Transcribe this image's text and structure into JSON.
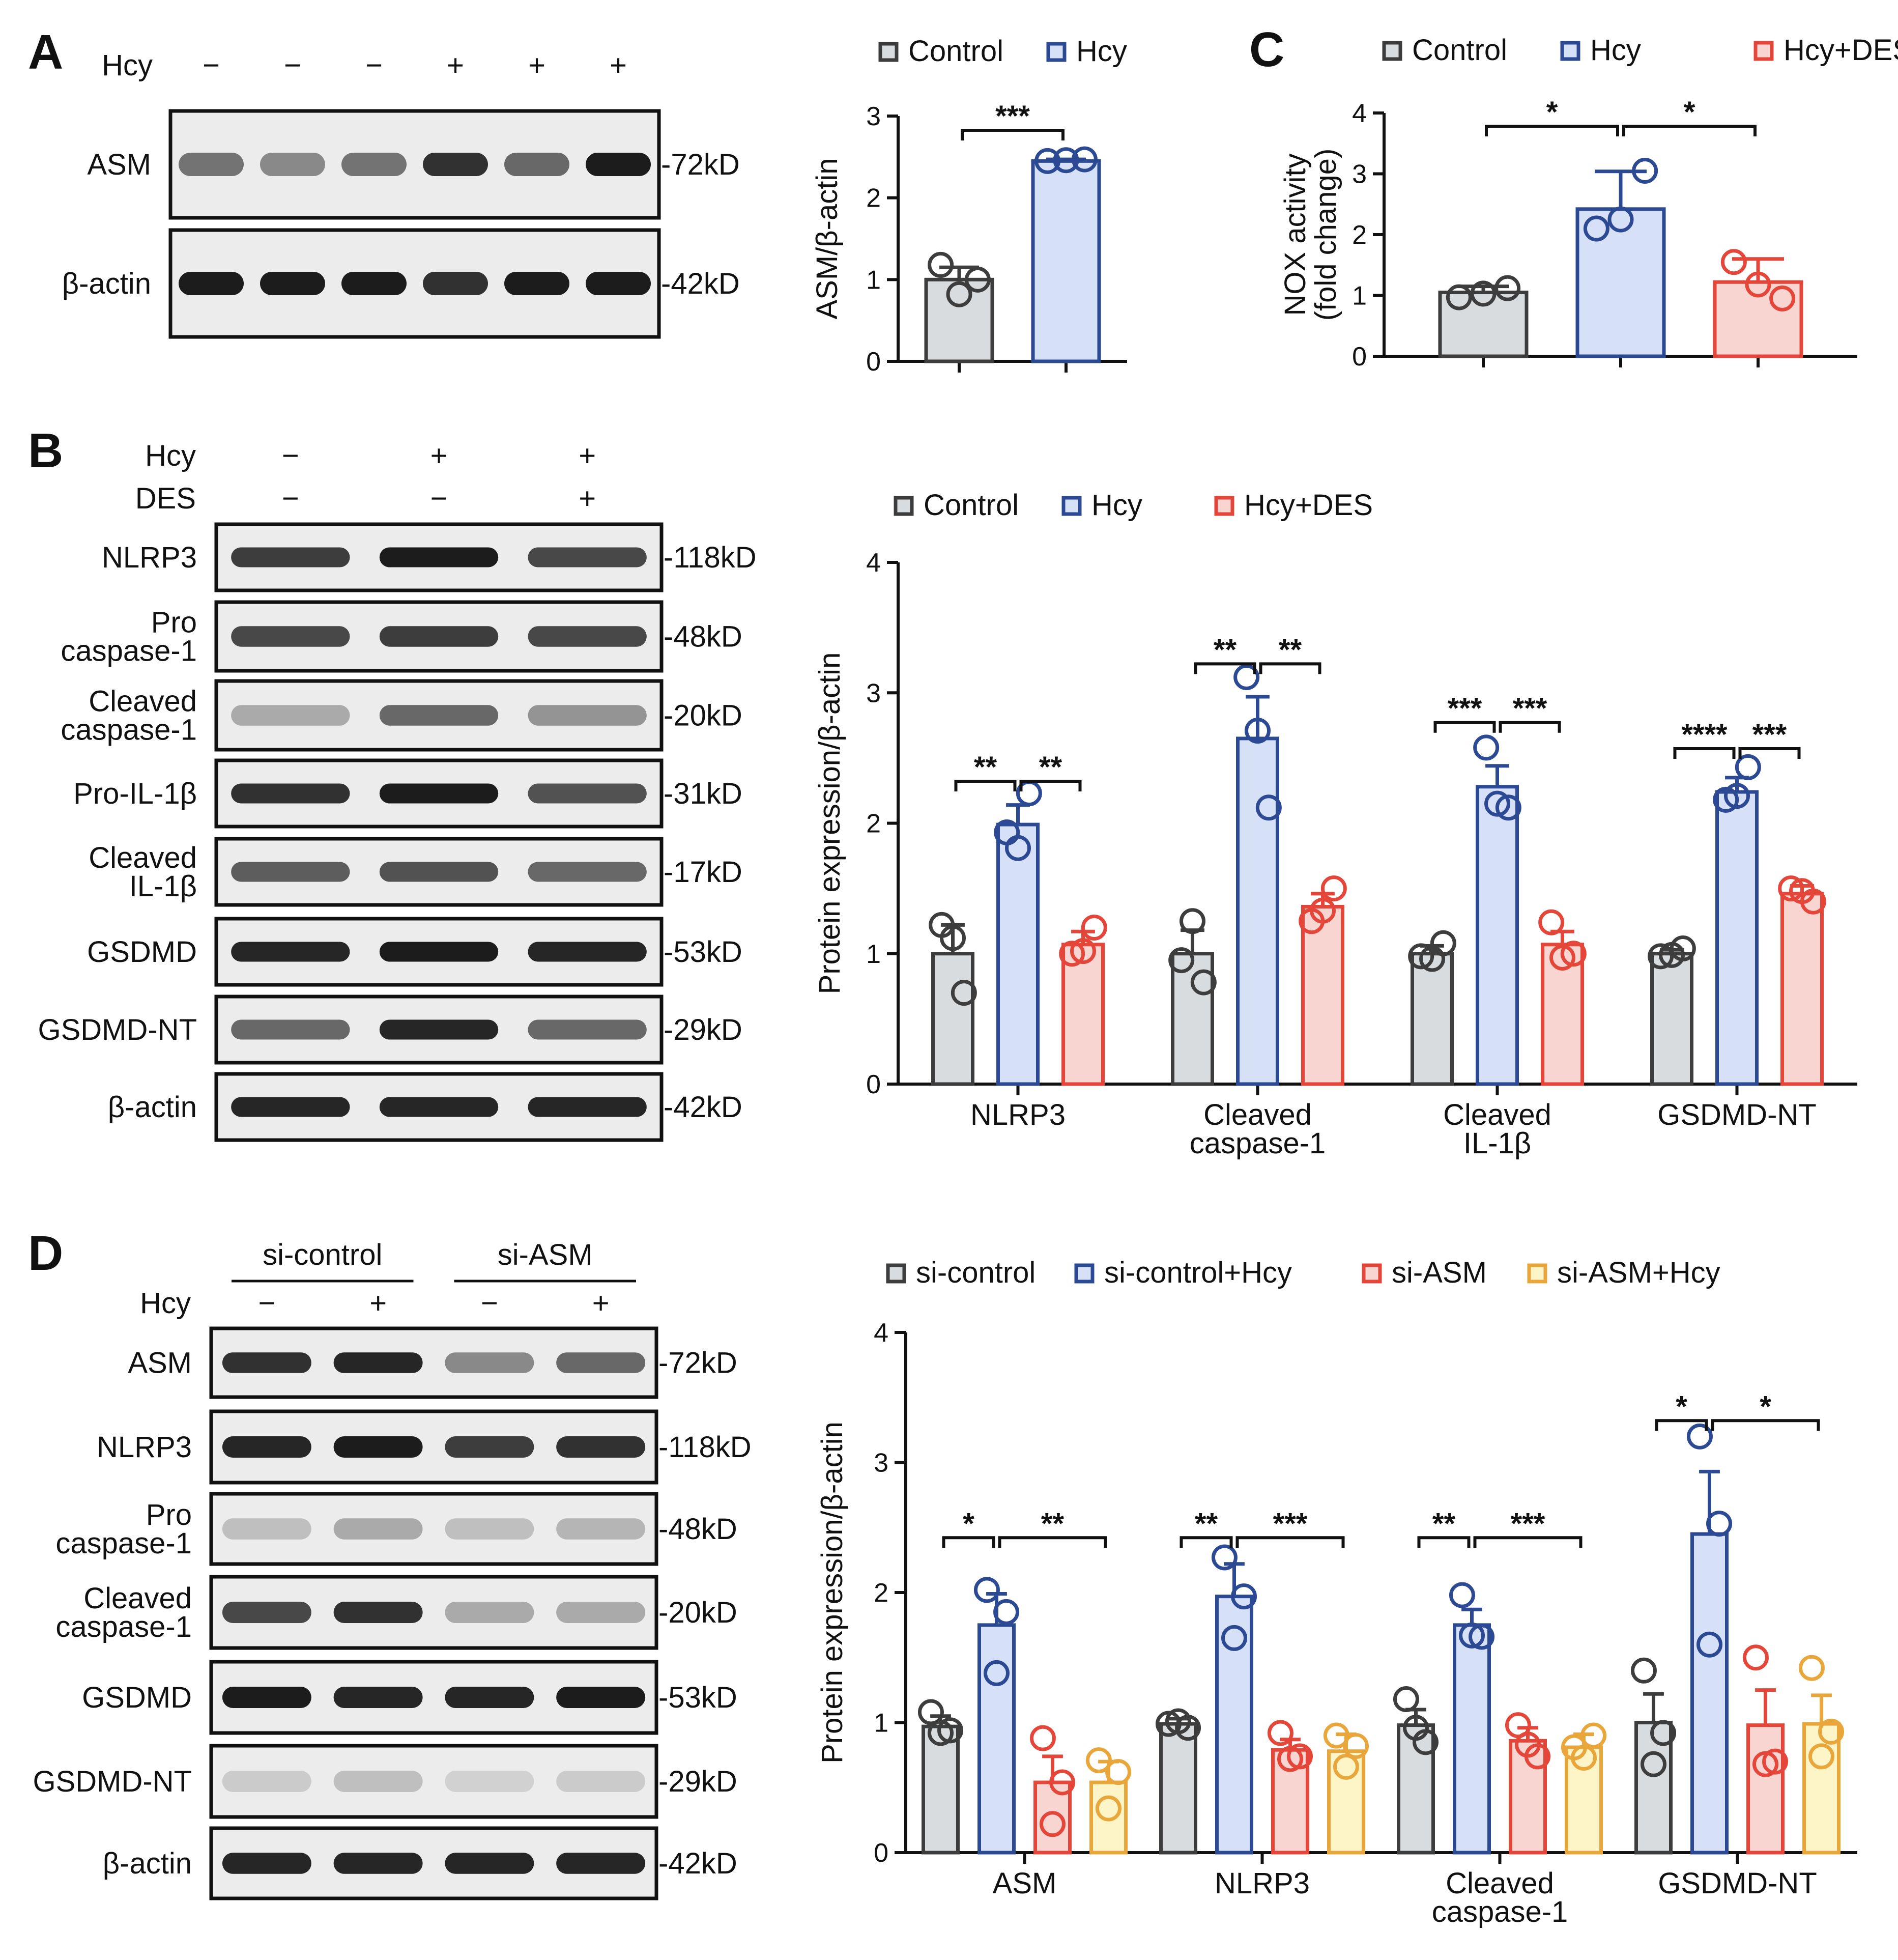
{
  "panels": {
    "A": {
      "label": "A",
      "blot": {
        "treatment_rows": [
          {
            "name": "Hcy",
            "signs": [
              "−",
              "−",
              "−",
              "+",
              "+",
              "+"
            ]
          }
        ],
        "lanes": 6,
        "bands": [
          {
            "name": "ASM",
            "kd": "-72kD",
            "intensity": [
              0.55,
              0.45,
              0.55,
              0.85,
              0.6,
              0.95
            ]
          },
          {
            "name": "β-actin",
            "kd": "-42kD",
            "intensity": [
              0.95,
              0.95,
              0.95,
              0.85,
              0.95,
              0.95
            ]
          }
        ]
      }
    },
    "B": {
      "label": "B",
      "blot": {
        "treatment_rows": [
          {
            "name": "Hcy",
            "signs": [
              "−",
              "+",
              "+"
            ]
          },
          {
            "name": "DES",
            "signs": [
              "−",
              "−",
              "+"
            ]
          }
        ],
        "lanes": 3,
        "bands": [
          {
            "name": "NLRP3",
            "kd": "-118kD",
            "intensity": [
              0.8,
              0.95,
              0.75
            ]
          },
          {
            "name": "Pro\ncaspase-1",
            "kd": "-48kD",
            "intensity": [
              0.75,
              0.8,
              0.75
            ]
          },
          {
            "name": "Cleaved\ncaspase-1",
            "kd": "-20kD",
            "intensity": [
              0.3,
              0.6,
              0.4
            ]
          },
          {
            "name": "Pro-IL-1β",
            "kd": "-31kD",
            "intensity": [
              0.85,
              0.95,
              0.7
            ]
          },
          {
            "name": "Cleaved\nIL-1β",
            "kd": "-17kD",
            "intensity": [
              0.65,
              0.7,
              0.6
            ]
          },
          {
            "name": "GSDMD",
            "kd": "-53kD",
            "intensity": [
              0.9,
              0.95,
              0.9
            ]
          },
          {
            "name": "GSDMD-NT",
            "kd": "-29kD",
            "intensity": [
              0.6,
              0.9,
              0.6
            ]
          },
          {
            "name": "β-actin",
            "kd": "-42kD",
            "intensity": [
              0.9,
              0.9,
              0.9
            ]
          }
        ]
      }
    },
    "C": {
      "label": "C"
    },
    "D": {
      "label": "D",
      "blot": {
        "group_labels": [
          "si-control",
          "si-ASM"
        ],
        "treatment_rows": [
          {
            "name": "Hcy",
            "signs": [
              "−",
              "+",
              "−",
              "+"
            ]
          }
        ],
        "lanes": 4,
        "bands": [
          {
            "name": "ASM",
            "kd": "-72kD",
            "intensity": [
              0.85,
              0.9,
              0.45,
              0.6
            ]
          },
          {
            "name": "NLRP3",
            "kd": "-118kD",
            "intensity": [
              0.9,
              0.95,
              0.8,
              0.85
            ]
          },
          {
            "name": "Pro\ncaspase-1",
            "kd": "-48kD",
            "intensity": [
              0.2,
              0.3,
              0.2,
              0.25
            ]
          },
          {
            "name": "Cleaved\ncaspase-1",
            "kd": "-20kD",
            "intensity": [
              0.75,
              0.85,
              0.3,
              0.3
            ]
          },
          {
            "name": "GSDMD",
            "kd": "-53kD",
            "intensity": [
              0.95,
              0.9,
              0.9,
              0.95
            ]
          },
          {
            "name": "GSDMD-NT",
            "kd": "-29kD",
            "intensity": [
              0.15,
              0.2,
              0.12,
              0.15
            ]
          },
          {
            "name": "β-actin",
            "kd": "-42kD",
            "intensity": [
              0.9,
              0.9,
              0.9,
              0.9
            ]
          }
        ]
      }
    }
  },
  "colors": {
    "Control": {
      "stroke": "#3d3d3d",
      "fill": "#d9dcdf"
    },
    "Hcy": {
      "stroke": "#2c4a94",
      "fill": "#d6e0f7"
    },
    "Hcy+DES": {
      "stroke": "#e4473a",
      "fill": "#f8d5d1"
    },
    "si-control": {
      "stroke": "#3d3d3d",
      "fill": "#d9dcdf"
    },
    "si-control+Hcy": {
      "stroke": "#2c4a94",
      "fill": "#d6e0f7"
    },
    "si-ASM": {
      "stroke": "#e4473a",
      "fill": "#f8d5d1"
    },
    "si-ASM+Hcy": {
      "stroke": "#e9a63a",
      "fill": "#fdf4c8"
    }
  },
  "chart_data": [
    {
      "panel": "A",
      "type": "bar",
      "ylabel": "ASM/β-actin",
      "ylim": [
        0,
        3
      ],
      "yticks": [
        0,
        1,
        2,
        3
      ],
      "legend": [
        "Control",
        "Hcy"
      ],
      "categories": [
        ""
      ],
      "series": [
        {
          "name": "Control",
          "values": [
            1.0
          ],
          "error": [
            0.15
          ],
          "points": [
            [
              1.18,
              1.0,
              0.82
            ]
          ]
        },
        {
          "name": "Hcy",
          "values": [
            2.45
          ],
          "error": [
            0.02
          ],
          "points": [
            [
              2.45,
              2.47,
              2.46
            ]
          ]
        }
      ],
      "significance": [
        {
          "category": 0,
          "from": 0,
          "to": 1,
          "label": "***",
          "y": 2.95
        }
      ]
    },
    {
      "panel": "C",
      "type": "bar",
      "ylabel": "NOX activity\n(fold change)",
      "ylim": [
        0,
        4
      ],
      "yticks": [
        0,
        1,
        2,
        3,
        4
      ],
      "legend": [
        "Control",
        "Hcy",
        "Hcy+DES"
      ],
      "categories": [
        ""
      ],
      "series": [
        {
          "name": "Control",
          "values": [
            1.05
          ],
          "error": [
            0.1
          ],
          "points": [
            [
              0.97,
              1.12,
              1.03
            ]
          ]
        },
        {
          "name": "Hcy",
          "values": [
            2.42
          ],
          "error": [
            0.62
          ],
          "points": [
            [
              2.1,
              3.05,
              2.25
            ]
          ]
        },
        {
          "name": "Hcy+DES",
          "values": [
            1.22
          ],
          "error": [
            0.38
          ],
          "points": [
            [
              1.55,
              0.95,
              1.18
            ]
          ]
        }
      ],
      "significance": [
        {
          "category": 0,
          "from": 0,
          "to": 1,
          "label": "*",
          "y": 3.95
        },
        {
          "category": 0,
          "from": 1,
          "to": 2,
          "label": "*",
          "y": 3.95
        }
      ]
    },
    {
      "panel": "B",
      "type": "bar",
      "ylabel": "Protein expression/β-actin",
      "ylim": [
        0,
        4
      ],
      "yticks": [
        0,
        1,
        2,
        3,
        4
      ],
      "legend": [
        "Control",
        "Hcy",
        "Hcy+DES"
      ],
      "categories": [
        "NLRP3",
        "Cleaved\ncaspase-1",
        "Cleaved\nIL-1β",
        "GSDMD-NT"
      ],
      "series": [
        {
          "name": "Control",
          "values": [
            1.0,
            1.0,
            1.0,
            1.0
          ],
          "error": [
            0.22,
            0.18,
            0.06,
            0.03
          ],
          "points": [
            [
              1.22,
              0.7,
              1.12
            ],
            [
              0.95,
              0.78,
              1.25
            ],
            [
              0.98,
              1.08,
              0.96
            ],
            [
              0.98,
              1.04,
              0.99
            ]
          ]
        },
        {
          "name": "Hcy",
          "values": [
            1.99,
            2.65,
            2.28,
            2.24
          ],
          "error": [
            0.15,
            0.32,
            0.16,
            0.11
          ],
          "points": [
            [
              1.93,
              2.23,
              1.81
            ],
            [
              3.12,
              2.12,
              2.71
            ],
            [
              2.58,
              2.12,
              2.15
            ],
            [
              2.18,
              2.43,
              2.21
            ]
          ]
        },
        {
          "name": "Hcy+DES",
          "values": [
            1.07,
            1.36,
            1.07,
            1.46
          ],
          "error": [
            0.1,
            0.1,
            0.1,
            0.06
          ],
          "points": [
            [
              1.0,
              1.2,
              1.02
            ],
            [
              1.25,
              1.5,
              1.33
            ],
            [
              1.24,
              1.0,
              0.97
            ],
            [
              1.5,
              1.4,
              1.48
            ]
          ]
        }
      ],
      "significance": [
        {
          "category": 0,
          "from": 0,
          "to": 1,
          "label": "**",
          "y": 2.4
        },
        {
          "category": 0,
          "from": 1,
          "to": 2,
          "label": "**",
          "y": 2.4
        },
        {
          "category": 1,
          "from": 0,
          "to": 1,
          "label": "**",
          "y": 3.3
        },
        {
          "category": 1,
          "from": 1,
          "to": 2,
          "label": "**",
          "y": 3.3
        },
        {
          "category": 2,
          "from": 0,
          "to": 1,
          "label": "***",
          "y": 2.85
        },
        {
          "category": 2,
          "from": 1,
          "to": 2,
          "label": "***",
          "y": 2.85
        },
        {
          "category": 3,
          "from": 0,
          "to": 1,
          "label": "****",
          "y": 2.65
        },
        {
          "category": 3,
          "from": 1,
          "to": 2,
          "label": "***",
          "y": 2.65
        }
      ]
    },
    {
      "panel": "D",
      "type": "bar",
      "ylabel": "Protein expression/β-actin",
      "ylim": [
        0,
        4
      ],
      "yticks": [
        0,
        1,
        2,
        3,
        4
      ],
      "legend": [
        "si-control",
        "si-control+Hcy",
        "si-ASM",
        "si-ASM+Hcy"
      ],
      "categories": [
        "ASM",
        "NLRP3",
        "Cleaved\ncaspase-1",
        "GSDMD-NT"
      ],
      "series": [
        {
          "name": "si-control",
          "values": [
            0.97,
            0.99,
            0.98,
            1.0
          ],
          "error": [
            0.08,
            0.04,
            0.12,
            0.22
          ],
          "points": [
            [
              1.08,
              0.94,
              0.92
            ],
            [
              0.99,
              0.96,
              1.01
            ],
            [
              1.18,
              0.85,
              0.96
            ],
            [
              1.4,
              0.92,
              0.68
            ]
          ]
        },
        {
          "name": "si-control+Hcy",
          "values": [
            1.75,
            1.97,
            1.75,
            2.45
          ],
          "error": [
            0.24,
            0.25,
            0.12,
            0.48
          ],
          "points": [
            [
              2.02,
              1.85,
              1.38
            ],
            [
              2.27,
              1.97,
              1.65
            ],
            [
              1.98,
              1.66,
              1.67
            ],
            [
              3.2,
              2.53,
              1.6
            ]
          ]
        },
        {
          "name": "si-ASM",
          "values": [
            0.54,
            0.79,
            0.86,
            0.98
          ],
          "error": [
            0.2,
            0.08,
            0.1,
            0.27
          ],
          "points": [
            [
              0.88,
              0.54,
              0.22
            ],
            [
              0.92,
              0.74,
              0.72
            ],
            [
              0.98,
              0.74,
              0.83
            ],
            [
              1.5,
              0.7,
              0.68
            ]
          ]
        },
        {
          "name": "si-ASM+Hcy",
          "values": [
            0.54,
            0.78,
            0.81,
            0.99
          ],
          "error": [
            0.16,
            0.13,
            0.1,
            0.22
          ],
          "points": [
            [
              0.71,
              0.62,
              0.34
            ],
            [
              0.9,
              0.82,
              0.66
            ],
            [
              0.81,
              0.9,
              0.73
            ],
            [
              1.42,
              0.93,
              0.74
            ]
          ]
        }
      ],
      "significance": [
        {
          "category": 0,
          "from": 0,
          "to": 1,
          "label": "*",
          "y": 2.5
        },
        {
          "category": 0,
          "from": 1,
          "to": 3,
          "label": "**",
          "y": 2.5
        },
        {
          "category": 1,
          "from": 0,
          "to": 1,
          "label": "**",
          "y": 2.5
        },
        {
          "category": 1,
          "from": 1,
          "to": 3,
          "label": "***",
          "y": 2.5
        },
        {
          "category": 2,
          "from": 0,
          "to": 1,
          "label": "**",
          "y": 2.5
        },
        {
          "category": 2,
          "from": 1,
          "to": 3,
          "label": "***",
          "y": 2.5
        },
        {
          "category": 3,
          "from": 0,
          "to": 1,
          "label": "*",
          "y": 3.4
        },
        {
          "category": 3,
          "from": 1,
          "to": 3,
          "label": "*",
          "y": 3.4
        }
      ]
    }
  ]
}
